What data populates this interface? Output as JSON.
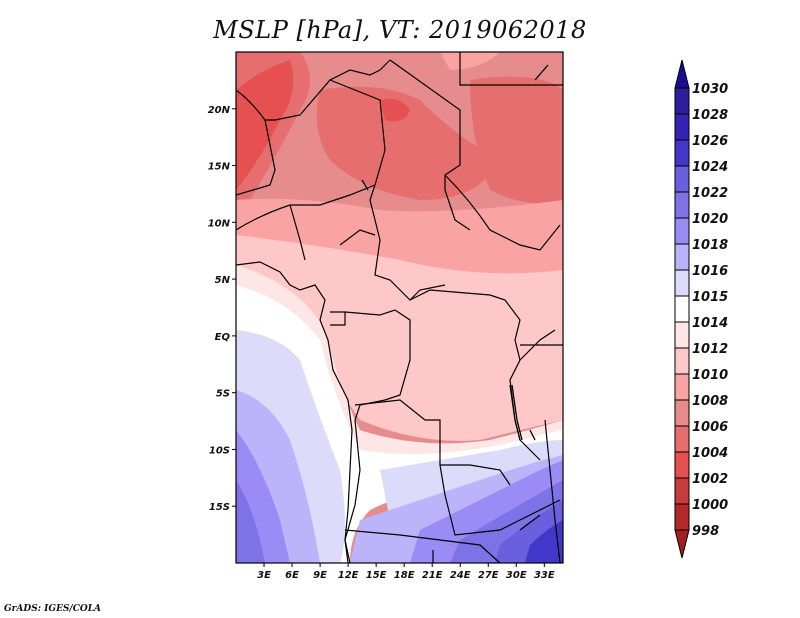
{
  "title": "MSLP [hPa], VT: 2019062018",
  "footer": "GrADS: IGES/COLA",
  "map": {
    "lon_range": [
      0,
      35
    ],
    "lat_range": [
      -20,
      25
    ],
    "lon_ticks": [
      {
        "value": 3,
        "label": "3E"
      },
      {
        "value": 6,
        "label": "6E"
      },
      {
        "value": 9,
        "label": "9E"
      },
      {
        "value": 12,
        "label": "12E"
      },
      {
        "value": 15,
        "label": "15E"
      },
      {
        "value": 18,
        "label": "18E"
      },
      {
        "value": 21,
        "label": "21E"
      },
      {
        "value": 24,
        "label": "24E"
      },
      {
        "value": 27,
        "label": "27E"
      },
      {
        "value": 30,
        "label": "30E"
      },
      {
        "value": 33,
        "label": "33E"
      }
    ],
    "lat_ticks": [
      {
        "value": 20,
        "label": "20N"
      },
      {
        "value": 15,
        "label": "15N"
      },
      {
        "value": 10,
        "label": "10N"
      },
      {
        "value": 5,
        "label": "5N"
      },
      {
        "value": 0,
        "label": "EQ"
      },
      {
        "value": -5,
        "label": "5S"
      },
      {
        "value": -10,
        "label": "10S"
      },
      {
        "value": -15,
        "label": "15S"
      }
    ]
  },
  "colorbar": {
    "top_arrow_color": "#1e0a96",
    "bottom_arrow_color": "#a51e1e",
    "levels": [
      {
        "label": "1030",
        "color": "#2d1e9b"
      },
      {
        "label": "1028",
        "color": "#3523b4"
      },
      {
        "label": "1026",
        "color": "#4137c8"
      },
      {
        "label": "1024",
        "color": "#6a5fdc"
      },
      {
        "label": "1022",
        "color": "#7d73e6"
      },
      {
        "label": "1020",
        "color": "#9b8cf5"
      },
      {
        "label": "1018",
        "color": "#bcb4fa"
      },
      {
        "label": "1016",
        "color": "#dcdcfa"
      },
      {
        "label": "1015",
        "color": "#ffffff"
      },
      {
        "label": "1014",
        "color": "#ffe6e6"
      },
      {
        "label": "1012",
        "color": "#ffc8c8"
      },
      {
        "label": "1010",
        "color": "#f9a3a3"
      },
      {
        "label": "1008",
        "color": "#e68c8c"
      },
      {
        "label": "1006",
        "color": "#e66e6e"
      },
      {
        "label": "1004",
        "color": "#e65050"
      },
      {
        "label": "1002",
        "color": "#c83c3c"
      },
      {
        "label": "1000",
        "color": "#b42828"
      },
      {
        "label": "998",
        "color": ""
      }
    ]
  }
}
